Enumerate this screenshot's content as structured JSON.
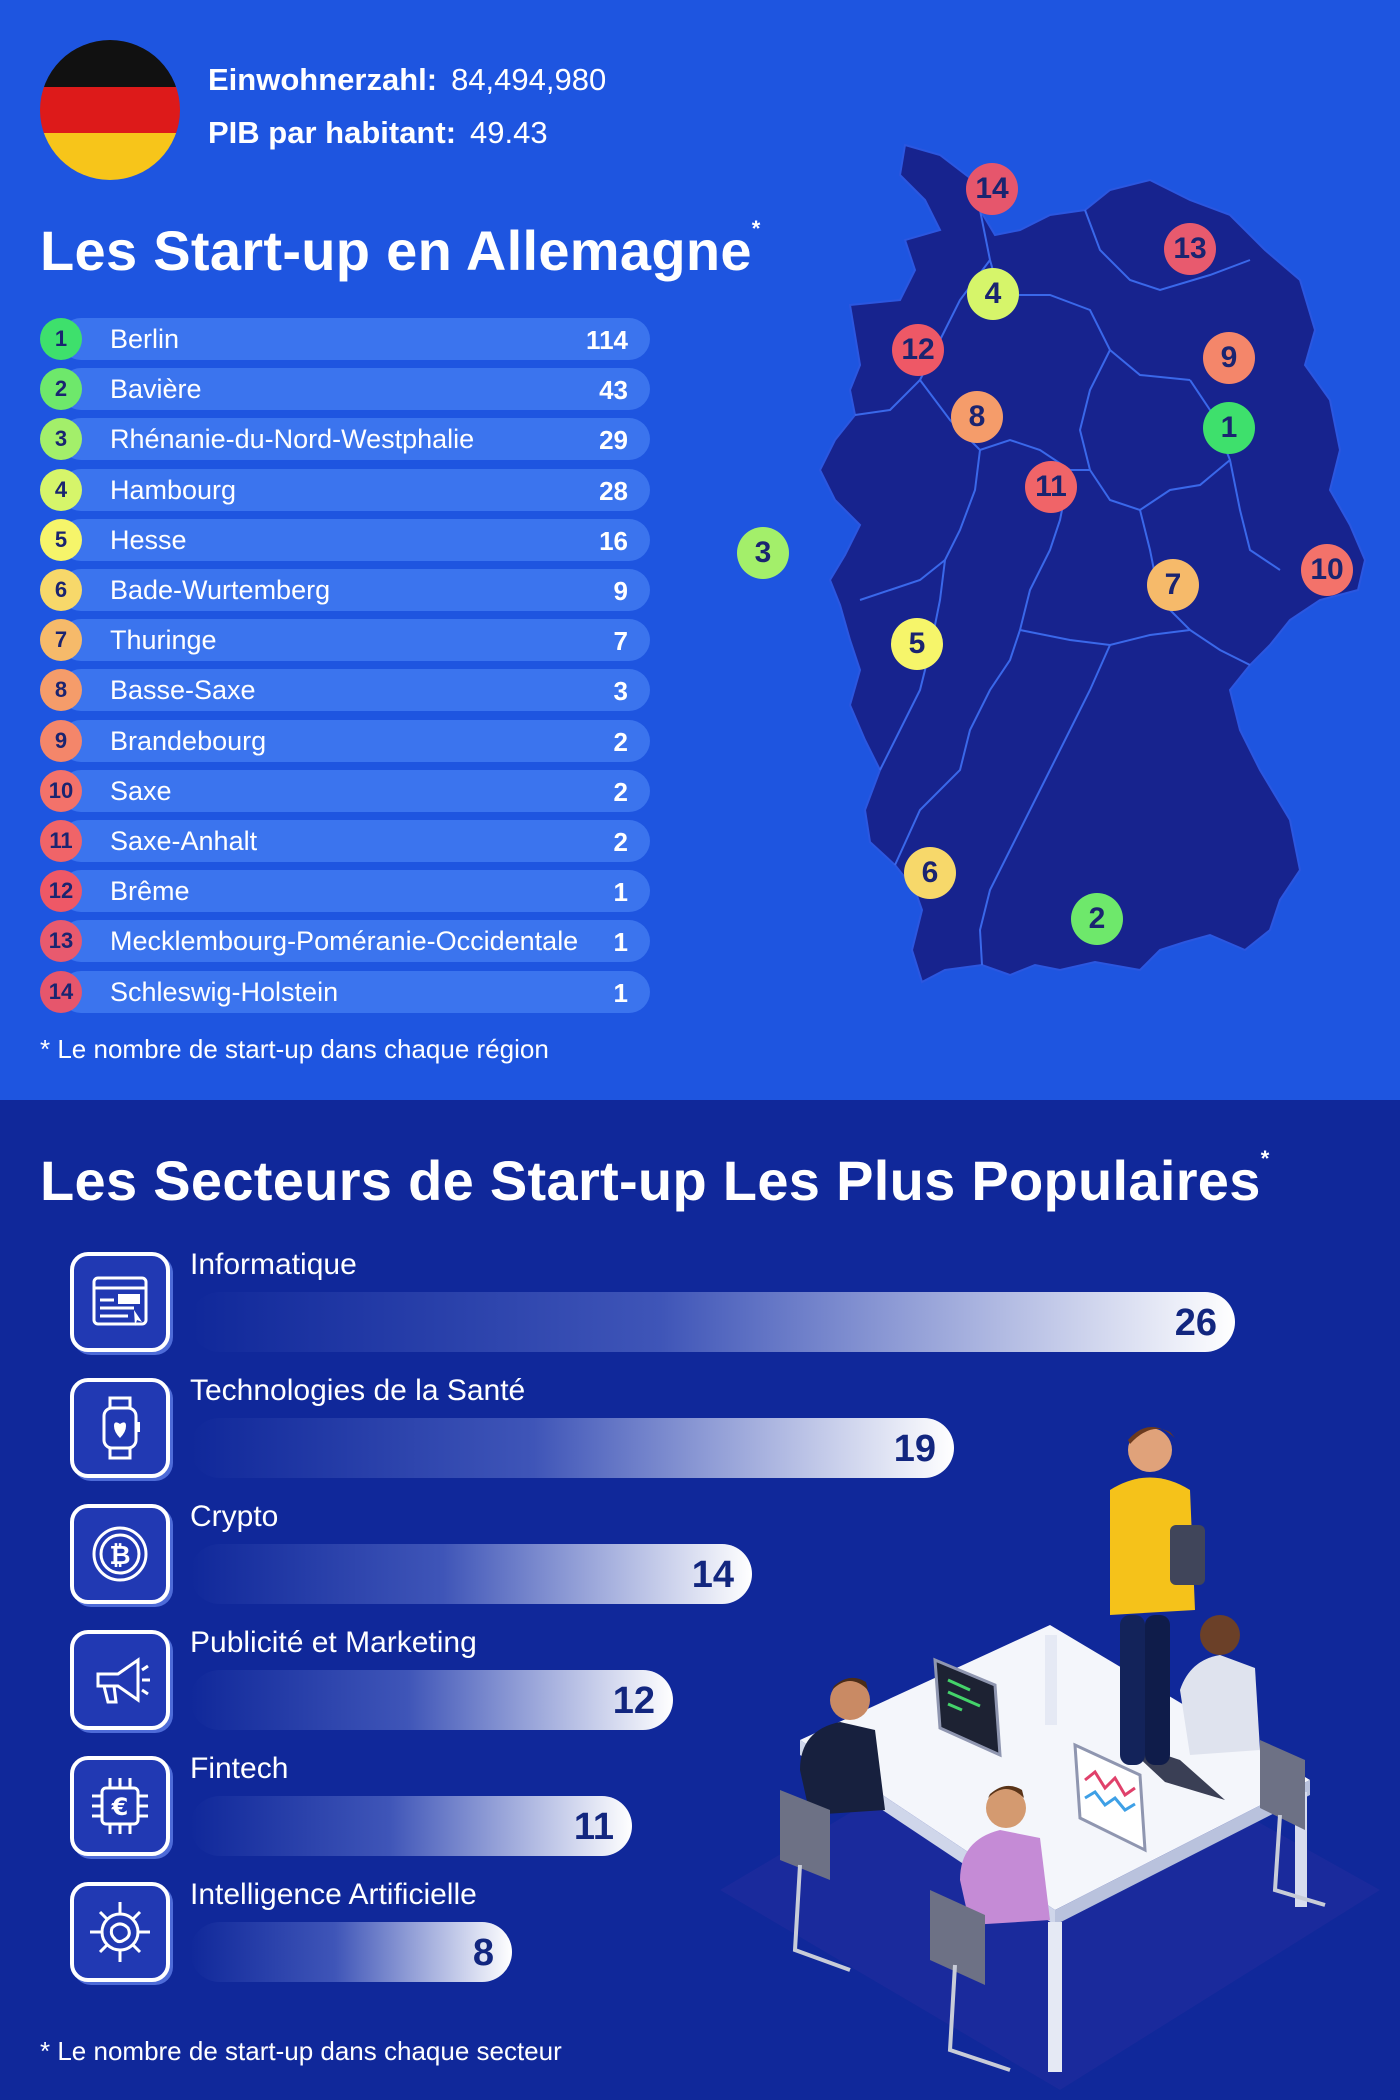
{
  "header": {
    "population_label": "Einwohnerzahl:",
    "population_value": "84,494,980",
    "gdp_label": "PIB par habitant:",
    "gdp_value": "49.43"
  },
  "regions_section": {
    "title": "Les Start-up en Allemagne",
    "asterisk": "*",
    "note": "* Le nombre de start-up dans chaque région",
    "items": [
      {
        "rank": "1",
        "name": "Berlin",
        "value": "114",
        "color": "#3ee06c"
      },
      {
        "rank": "2",
        "name": "Bavière",
        "value": "43",
        "color": "#6ee86b"
      },
      {
        "rank": "3",
        "name": "Rhénanie-du-Nord-Westphalie",
        "value": "29",
        "color": "#a3ef6a"
      },
      {
        "rank": "4",
        "name": "Hambourg",
        "value": "28",
        "color": "#d6f56a"
      },
      {
        "rank": "5",
        "name": "Hesse",
        "value": "16",
        "color": "#f6f56a"
      },
      {
        "rank": "6",
        "name": "Bade-Wurtemberg",
        "value": "9",
        "color": "#f7d86a"
      },
      {
        "rank": "7",
        "name": "Thuringe",
        "value": "7",
        "color": "#f6ba6a"
      },
      {
        "rank": "8",
        "name": "Basse-Saxe",
        "value": "3",
        "color": "#f59c6a"
      },
      {
        "rank": "9",
        "name": "Brandebourg",
        "value": "2",
        "color": "#f4866a"
      },
      {
        "rank": "10",
        "name": "Saxe",
        "value": "2",
        "color": "#f3726a"
      },
      {
        "rank": "11",
        "name": "Saxe-Anhalt",
        "value": "2",
        "color": "#f06468"
      },
      {
        "rank": "12",
        "name": "Brême",
        "value": "1",
        "color": "#ee5866"
      },
      {
        "rank": "13",
        "name": "Mecklembourg-Poméranie-Occidentale",
        "value": "1",
        "color": "#e85a6e"
      },
      {
        "rank": "14",
        "name": "Schleswig-Holstein",
        "value": "1",
        "color": "#e6566c"
      }
    ]
  },
  "sectors_section": {
    "title": "Les Secteurs de Start-up Les Plus Populaires",
    "asterisk": "*",
    "note": "* Le nombre de start-up dans chaque secteur",
    "items": [
      {
        "label": "Informatique",
        "value": "26",
        "icon": "browser-window-icon",
        "fraction": 1.0
      },
      {
        "label": "Technologies de la Santé",
        "value": "19",
        "icon": "smartwatch-heart-icon",
        "fraction": 0.731
      },
      {
        "label": "Crypto",
        "value": "14",
        "icon": "bitcoin-coin-icon",
        "fraction": 0.538
      },
      {
        "label": "Publicité et Marketing",
        "value": "12",
        "icon": "megaphone-icon",
        "fraction": 0.462
      },
      {
        "label": "Fintech",
        "value": "11",
        "icon": "euro-chip-icon",
        "fraction": 0.423
      },
      {
        "label": "Intelligence Artificielle",
        "value": "8",
        "icon": "ai-brain-chip-icon",
        "fraction": 0.308
      }
    ]
  }
}
